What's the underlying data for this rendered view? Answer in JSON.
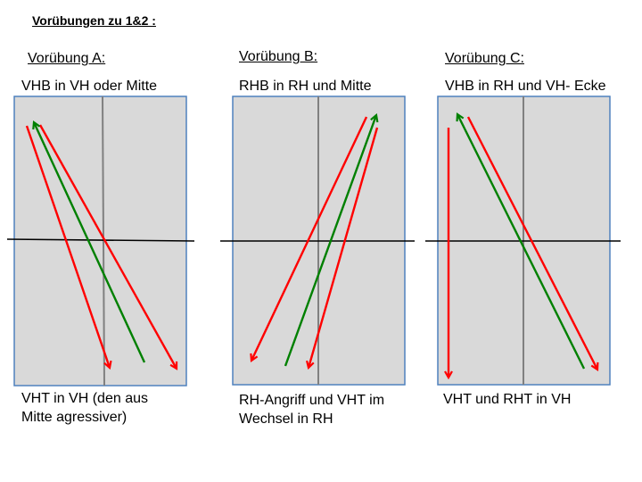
{
  "title": "Vorübungen zu 1&2 :",
  "colors": {
    "court": "#d9d9d9",
    "court_border": "#4f81bd",
    "attack": "#ff0000",
    "pass": "#008000",
    "net": "#000000",
    "center_line": "#808080"
  },
  "panels": [
    {
      "heading": "Vorübung A:",
      "top_text": "VHB in VH oder Mitte",
      "bottom_lines": [
        "VHT in VH (den aus",
        "Mitte agressiver)"
      ]
    },
    {
      "heading": "Vorübung B:",
      "top_text": "RHB in RH und Mitte",
      "bottom_lines": [
        "RH-Angriff und VHT im",
        "Wechsel in RH"
      ]
    },
    {
      "heading": "Vorübung C:",
      "top_text": "VHB in RH und VH- Ecke",
      "bottom_lines": [
        "VHT und RHT in VH"
      ]
    }
  ]
}
